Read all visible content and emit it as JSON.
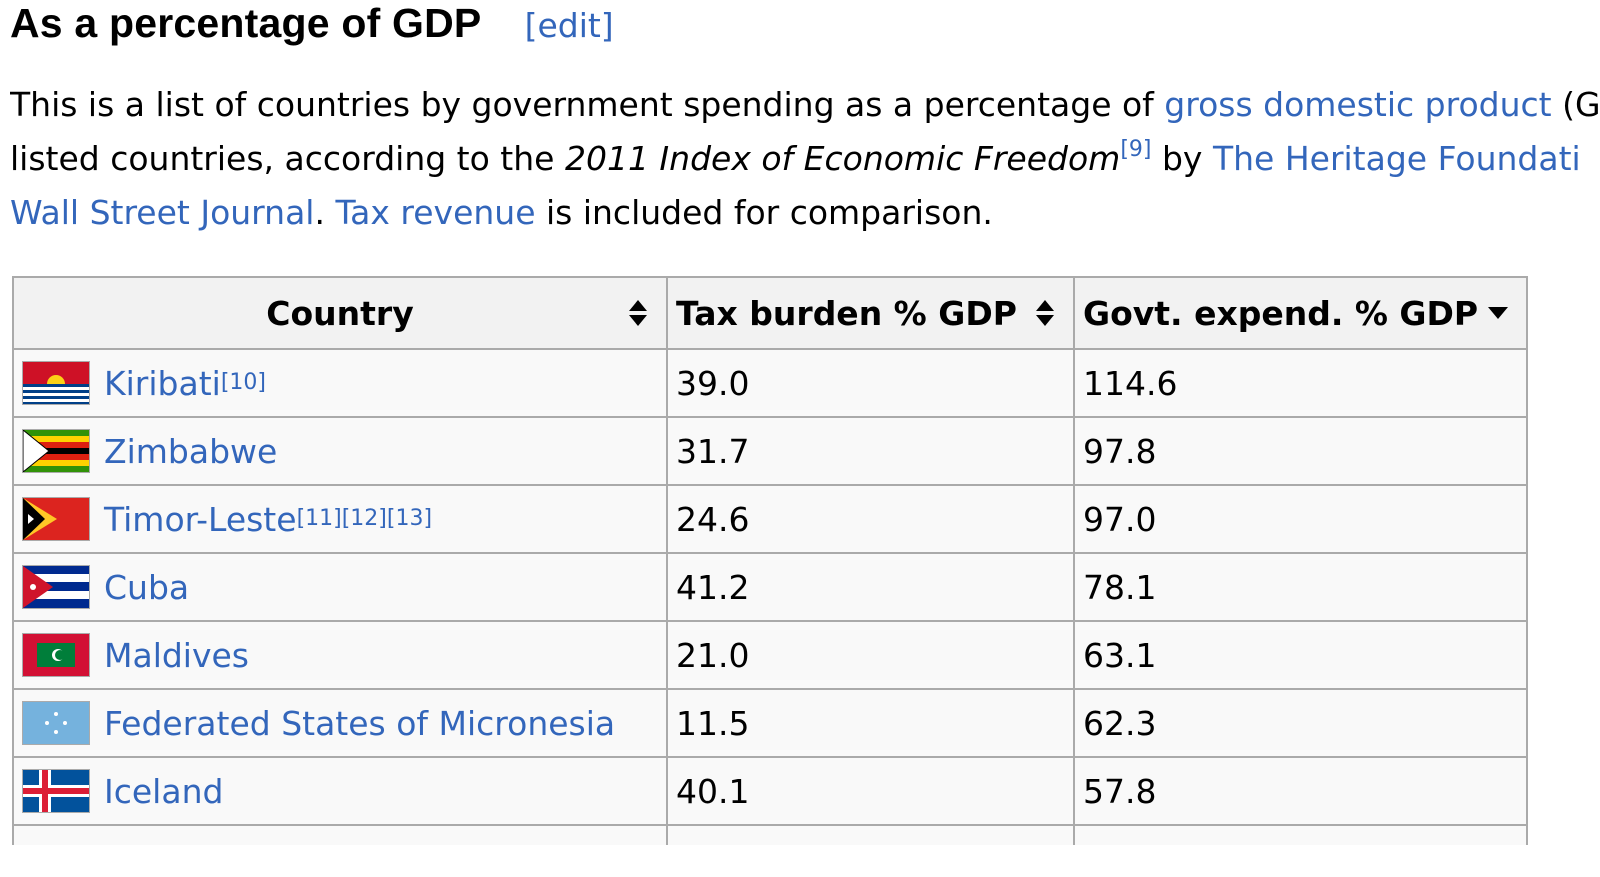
{
  "heading": {
    "title": "As a percentage of GDP",
    "edit_label": "[edit]"
  },
  "intro": {
    "line1_a": "This is a list of countries by government spending as a percentage of ",
    "line1_link": "gross domestic product",
    "line1_b": " (G",
    "line2_a": "listed countries, according to the ",
    "line2_italic": "2011 Index of Economic Freedom",
    "line2_ref": "[9]",
    "line2_b": " by ",
    "line2_link": "The Heritage Foundati",
    "line3_link1": "Wall Street Journal",
    "line3_a": ". ",
    "line3_link2": "Tax revenue",
    "line3_b": " is included for comparison."
  },
  "table": {
    "headers": {
      "country": "Country",
      "tax": "Tax burden % GDP",
      "govt": "Govt. expend. % GDP"
    },
    "rows": [
      {
        "country": "Kiribati",
        "ref": "[10]",
        "tax": "39.0",
        "govt": "114.6",
        "flag": "kiribati-flag-icon"
      },
      {
        "country": "Zimbabwe",
        "ref": "",
        "tax": "31.7",
        "govt": "97.8",
        "flag": "zimbabwe-flag-icon"
      },
      {
        "country": "Timor-Leste",
        "ref": "[11][12][13]",
        "tax": "24.6",
        "govt": "97.0",
        "flag": "timor-leste-flag-icon"
      },
      {
        "country": "Cuba",
        "ref": "",
        "tax": "41.2",
        "govt": "78.1",
        "flag": "cuba-flag-icon"
      },
      {
        "country": "Maldives",
        "ref": "",
        "tax": "21.0",
        "govt": "63.1",
        "flag": "maldives-flag-icon"
      },
      {
        "country": "Federated States of Micronesia",
        "ref": "",
        "tax": "11.5",
        "govt": "62.3",
        "flag": "micronesia-flag-icon"
      },
      {
        "country": "Iceland",
        "ref": "",
        "tax": "40.1",
        "govt": "57.8",
        "flag": "iceland-flag-icon"
      }
    ]
  },
  "colors": {
    "link": "#3366bb",
    "header_bg": "#f2f2f2",
    "cell_bg": "#f9f9f9",
    "border": "#aaaaaa"
  }
}
